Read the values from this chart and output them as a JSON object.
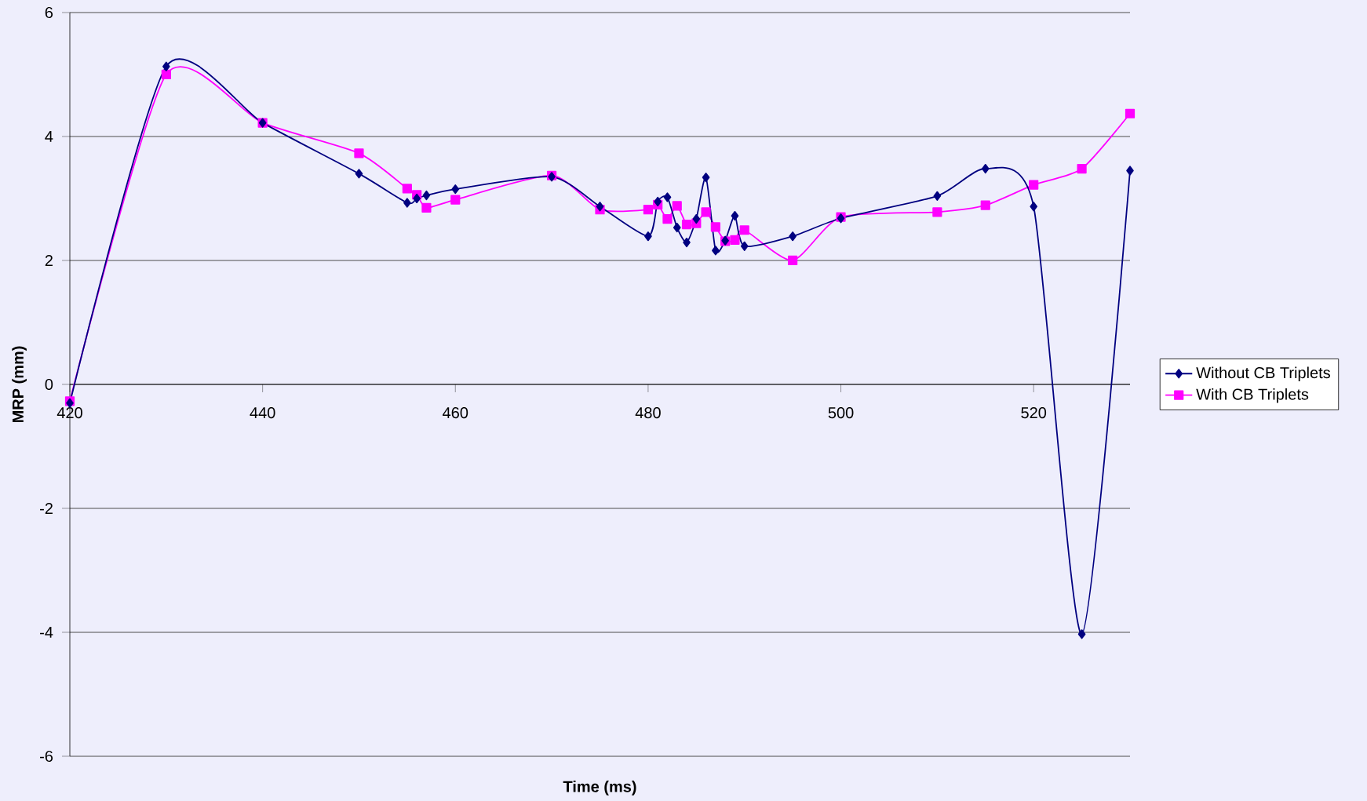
{
  "chart_data": {
    "type": "line",
    "xlabel": "Time (ms)",
    "ylabel": "MRP (mm)",
    "xlim": [
      420,
      530
    ],
    "xticks": [
      420,
      440,
      460,
      480,
      500,
      520
    ],
    "ylim": [
      -6,
      6
    ],
    "yticks": [
      -6,
      -4,
      -2,
      0,
      2,
      4,
      6
    ],
    "grid": "y",
    "legend": "right",
    "series": [
      {
        "name": "Without CB Triplets",
        "color": "#000080",
        "marker": "diamond",
        "x": [
          420,
          430,
          440,
          450,
          455,
          456,
          457,
          460,
          470,
          475,
          480,
          481,
          482,
          483,
          484,
          485,
          486,
          487,
          488,
          489,
          490,
          495,
          500,
          510,
          515,
          520,
          525,
          530
        ],
        "values": [
          -0.3,
          5.13,
          4.22,
          3.4,
          2.93,
          3.0,
          3.05,
          3.15,
          3.35,
          2.87,
          2.39,
          2.95,
          3.02,
          2.53,
          2.29,
          2.67,
          3.34,
          2.16,
          2.32,
          2.72,
          2.23,
          2.39,
          2.68,
          3.04,
          3.48,
          2.87,
          -4.03,
          3.45
        ]
      },
      {
        "name": "With CB Triplets",
        "color": "#ff00ff",
        "marker": "square",
        "x": [
          420,
          430,
          440,
          450,
          455,
          456,
          457,
          460,
          470,
          475,
          480,
          481,
          482,
          483,
          484,
          485,
          486,
          487,
          488,
          489,
          490,
          495,
          500,
          510,
          515,
          520,
          525,
          530
        ],
        "values": [
          -0.27,
          5.0,
          4.22,
          3.73,
          3.16,
          3.06,
          2.85,
          2.98,
          3.37,
          2.82,
          2.82,
          2.9,
          2.67,
          2.88,
          2.58,
          2.6,
          2.78,
          2.54,
          2.31,
          2.33,
          2.49,
          2.0,
          2.7,
          2.78,
          2.89,
          3.22,
          3.48,
          4.37
        ]
      }
    ]
  }
}
